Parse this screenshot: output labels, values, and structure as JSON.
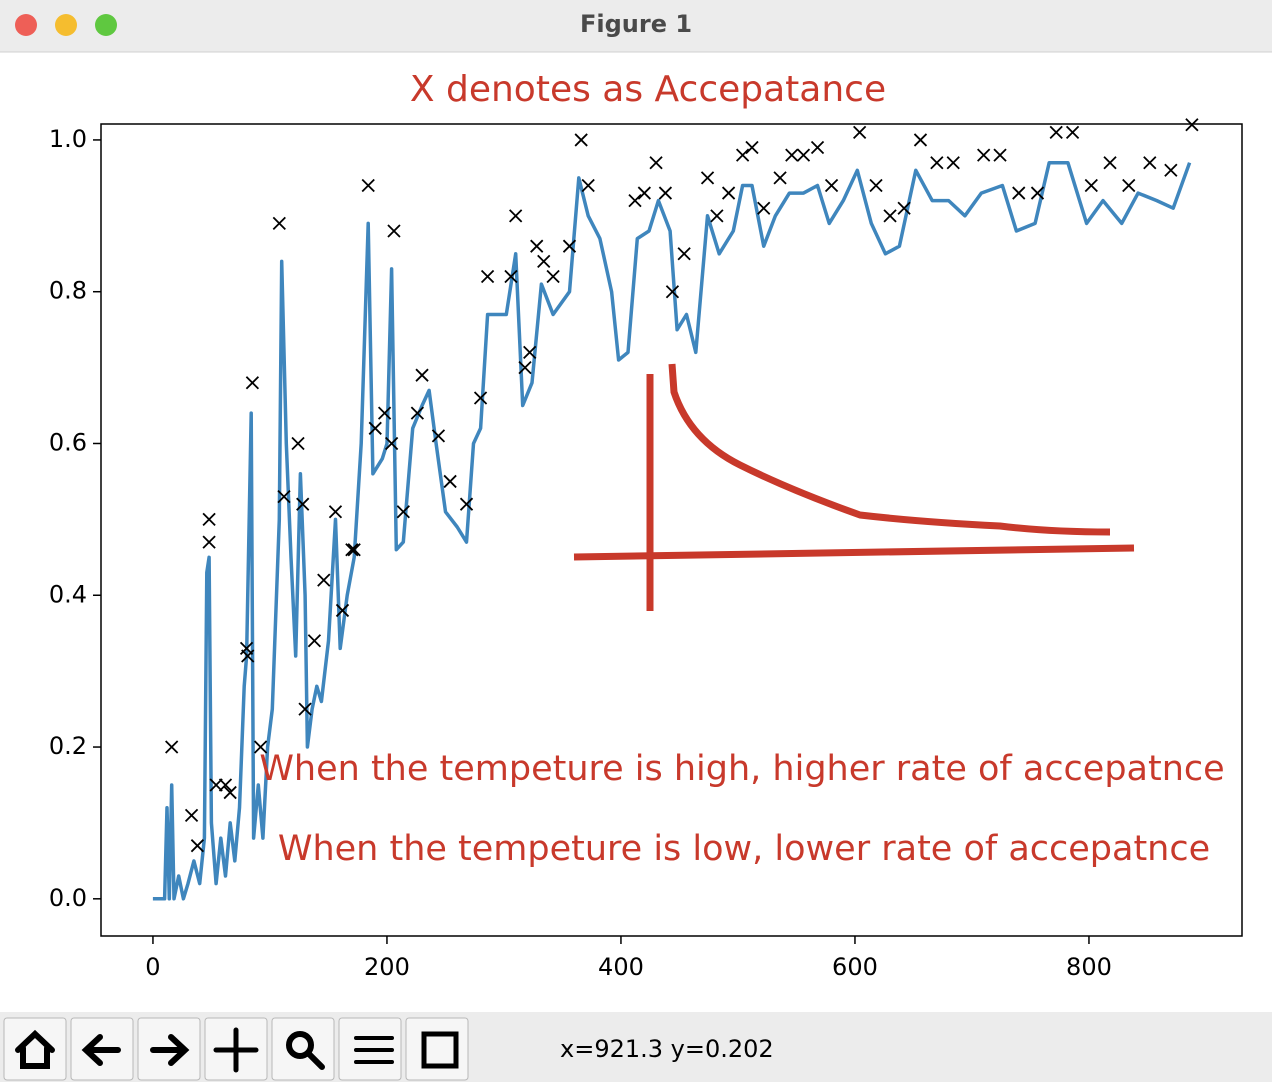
{
  "window": {
    "title": "Figure 1"
  },
  "chart_data": {
    "type": "line",
    "title": "X denotes as Accepatance",
    "x": [
      0,
      10,
      12,
      14,
      16,
      18,
      22,
      26,
      30,
      35,
      40,
      44,
      46,
      48,
      50,
      54,
      58,
      62,
      66,
      70,
      74,
      78,
      80,
      84,
      86,
      90,
      94,
      98,
      102,
      108,
      110,
      114,
      118,
      122,
      126,
      130,
      132,
      136,
      140,
      144,
      150,
      156,
      160,
      166,
      172,
      178,
      184,
      188,
      196,
      200,
      204,
      208,
      214,
      222,
      230,
      236,
      242,
      250,
      260,
      268,
      274,
      280,
      286,
      296,
      302,
      310,
      316,
      324,
      332,
      342,
      356,
      364,
      372,
      382,
      392,
      398,
      406,
      414,
      424,
      432,
      442,
      448,
      456,
      464,
      474,
      484,
      496,
      504,
      512,
      522,
      532,
      544,
      556,
      568,
      578,
      590,
      602,
      614,
      626,
      638,
      652,
      666,
      680,
      694,
      708,
      726,
      738,
      754,
      766,
      782,
      798,
      812,
      828,
      842,
      858,
      872,
      886
    ],
    "values": [
      0,
      0,
      0.12,
      0,
      0.15,
      0,
      0.03,
      0,
      0.02,
      0.05,
      0.02,
      0.08,
      0.43,
      0.45,
      0.1,
      0.02,
      0.08,
      0.03,
      0.1,
      0.05,
      0.12,
      0.28,
      0.32,
      0.64,
      0.08,
      0.15,
      0.08,
      0.2,
      0.25,
      0.5,
      0.84,
      0.6,
      0.45,
      0.32,
      0.56,
      0.4,
      0.2,
      0.25,
      0.28,
      0.26,
      0.34,
      0.5,
      0.33,
      0.4,
      0.45,
      0.6,
      0.89,
      0.56,
      0.58,
      0.6,
      0.83,
      0.46,
      0.47,
      0.62,
      0.65,
      0.67,
      0.6,
      0.51,
      0.49,
      0.47,
      0.6,
      0.62,
      0.77,
      0.77,
      0.77,
      0.85,
      0.65,
      0.68,
      0.81,
      0.77,
      0.8,
      0.95,
      0.9,
      0.87,
      0.8,
      0.71,
      0.72,
      0.87,
      0.88,
      0.92,
      0.88,
      0.75,
      0.77,
      0.72,
      0.9,
      0.85,
      0.88,
      0.94,
      0.94,
      0.86,
      0.9,
      0.93,
      0.93,
      0.94,
      0.89,
      0.92,
      0.96,
      0.89,
      0.85,
      0.86,
      0.96,
      0.92,
      0.92,
      0.9,
      0.93,
      0.94,
      0.88,
      0.89,
      0.97,
      0.97,
      0.89,
      0.92,
      0.89,
      0.93,
      0.92,
      0.91,
      0.97
    ],
    "color": "#3f86bd",
    "markers": {
      "marker": "x",
      "color": "#000000",
      "x": [
        16,
        33,
        38,
        48,
        48,
        54,
        62,
        66,
        80,
        81,
        85,
        92,
        108,
        112,
        124,
        128,
        130,
        138,
        146,
        156,
        162,
        170,
        172,
        184,
        190,
        198,
        204,
        206,
        214,
        226,
        230,
        244,
        254,
        268,
        280,
        286,
        306,
        310,
        318,
        322,
        328,
        334,
        342,
        356,
        366,
        372,
        412,
        420,
        430,
        438,
        444,
        454,
        474,
        482,
        492,
        504,
        512,
        522,
        536,
        546,
        556,
        568,
        580,
        604,
        618,
        630,
        642,
        656,
        670,
        684,
        710,
        724,
        740,
        756,
        772,
        786,
        802,
        818,
        834,
        852,
        870,
        888
      ],
      "values": [
        0.2,
        0.11,
        0.07,
        0.5,
        0.47,
        0.15,
        0.15,
        0.14,
        0.33,
        0.32,
        0.68,
        0.2,
        0.89,
        0.53,
        0.6,
        0.52,
        0.25,
        0.34,
        0.42,
        0.51,
        0.38,
        0.46,
        0.46,
        0.94,
        0.62,
        0.64,
        0.6,
        0.88,
        0.51,
        0.64,
        0.69,
        0.61,
        0.55,
        0.52,
        0.66,
        0.82,
        0.82,
        0.9,
        0.7,
        0.72,
        0.86,
        0.84,
        0.82,
        0.86,
        1.0,
        0.94,
        0.92,
        0.93,
        0.97,
        0.93,
        0.8,
        0.85,
        0.95,
        0.9,
        0.93,
        0.98,
        0.99,
        0.91,
        0.95,
        0.98,
        0.98,
        0.99,
        0.94,
        1.01,
        0.94,
        0.9,
        0.91,
        1.0,
        0.97,
        0.97,
        0.98,
        0.98,
        0.93,
        0.93,
        1.01,
        1.01,
        0.94,
        0.97,
        0.94,
        0.97,
        0.96,
        1.02
      ]
    },
    "annotations": [
      "When the tempeture is high, higher rate of accepatnce",
      "When the tempeture is low, lower rate of accepatnce"
    ],
    "annotation_color": "#c8392b",
    "xlim": [
      -44.4,
      930.8
    ],
    "ylim": [
      -0.049,
      1.021
    ],
    "xticks": [
      0,
      200,
      400,
      600,
      800
    ],
    "yticks": [
      {
        "value": 0,
        "label": "0.0"
      },
      0.2,
      0.4,
      0.6,
      0.8,
      {
        "value": 1,
        "label": "1.0"
      }
    ]
  },
  "toolbar": {
    "status": "x=921.3 y=0.202"
  }
}
